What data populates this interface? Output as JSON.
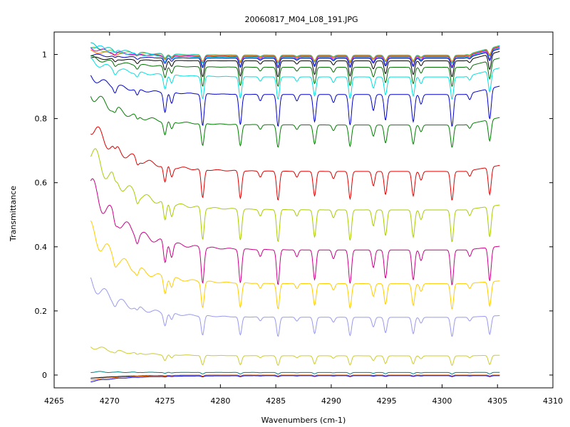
{
  "chart_data": {
    "type": "line",
    "title": "20060817_M04_L08_191.JPG",
    "xlabel": "Wavenumbers (cm-1)",
    "ylabel": "Transmittance",
    "xlim": [
      4265,
      4310
    ],
    "ylim": [
      -0.04,
      1.07
    ],
    "xticks": [
      4265,
      4270,
      4275,
      4280,
      4285,
      4290,
      4295,
      4300,
      4305,
      4310
    ],
    "xtick_labels": [
      "4265",
      "4270",
      "4275",
      "4280",
      "4285",
      "4290",
      "4295",
      "4300",
      "4305",
      "4310"
    ],
    "yticks": [
      0,
      0.2,
      0.4,
      0.6,
      0.8,
      1
    ],
    "ytick_labels": [
      "0",
      "0.2",
      "0.4",
      "0.6",
      "0.8",
      "1"
    ],
    "grid": false,
    "legend": "none",
    "x_range": [
      4268.3,
      4305.2
    ],
    "absorption_lines": [
      {
        "x": 4270.5,
        "depth": 0.18
      },
      {
        "x": 4272.5,
        "depth": 0.2
      },
      {
        "x": 4275.0,
        "depth": 0.6
      },
      {
        "x": 4275.6,
        "depth": 0.35
      },
      {
        "x": 4278.4,
        "depth": 1.0
      },
      {
        "x": 4281.8,
        "depth": 0.95
      },
      {
        "x": 4283.6,
        "depth": 0.2
      },
      {
        "x": 4285.2,
        "depth": 1.0
      },
      {
        "x": 4286.9,
        "depth": 0.2
      },
      {
        "x": 4288.5,
        "depth": 0.85
      },
      {
        "x": 4290.2,
        "depth": 0.25
      },
      {
        "x": 4291.7,
        "depth": 0.95
      },
      {
        "x": 4293.8,
        "depth": 0.5
      },
      {
        "x": 4294.9,
        "depth": 0.8
      },
      {
        "x": 4297.4,
        "depth": 0.85
      },
      {
        "x": 4298.1,
        "depth": 0.3
      },
      {
        "x": 4300.9,
        "depth": 1.0
      },
      {
        "x": 4302.5,
        "depth": 0.2
      },
      {
        "x": 4304.3,
        "depth": 0.95
      }
    ],
    "series": [
      {
        "color": "#7fbf3f",
        "baseline": 0.998,
        "start": 1.02,
        "depth": 0.02
      },
      {
        "color": "#00bfbf",
        "baseline": 0.997,
        "start": 1.03,
        "depth": 0.025
      },
      {
        "color": "#ff6f00",
        "baseline": 0.995,
        "start": 1.01,
        "depth": 0.02
      },
      {
        "color": "#bf00bf",
        "baseline": 0.993,
        "start": 1.02,
        "depth": 0.03
      },
      {
        "color": "#00cfff",
        "baseline": 0.99,
        "start": 1.03,
        "depth": 0.03
      },
      {
        "color": "#0000bf",
        "baseline": 0.988,
        "start": 1.0,
        "depth": 0.03
      },
      {
        "color": "#000000",
        "baseline": 0.98,
        "start": 0.99,
        "depth": 0.05
      },
      {
        "color": "#006f00",
        "baseline": 0.96,
        "start": 0.99,
        "depth": 0.06
      },
      {
        "color": "#00e0e0",
        "baseline": 0.93,
        "start": 0.98,
        "depth": 0.07
      },
      {
        "color": "#0000cc",
        "baseline": 0.875,
        "start": 0.93,
        "depth": 0.1
      },
      {
        "color": "#007f00",
        "baseline": 0.78,
        "start": 0.88,
        "depth": 0.07
      },
      {
        "color": "#e00000",
        "baseline": 0.635,
        "start": 0.78,
        "depth": 0.09
      },
      {
        "color": "#aacc00",
        "baseline": 0.515,
        "start": 0.7,
        "depth": 0.1
      },
      {
        "color": "#cc0088",
        "baseline": 0.39,
        "start": 0.59,
        "depth": 0.11
      },
      {
        "color": "#ffcc00",
        "baseline": 0.285,
        "start": 0.45,
        "depth": 0.08
      },
      {
        "color": "#9999ee",
        "baseline": 0.18,
        "start": 0.29,
        "depth": 0.06
      },
      {
        "color": "#cccc33",
        "baseline": 0.06,
        "start": 0.09,
        "depth": 0.03
      },
      {
        "color": "#007f7f",
        "baseline": 0.008,
        "start": 0.01,
        "depth": 0.005
      },
      {
        "color": "#000000",
        "baseline": 0.0,
        "start": -0.01,
        "depth": 0.003
      },
      {
        "color": "#ff6f00",
        "baseline": 0.0,
        "start": -0.015,
        "depth": 0.003
      },
      {
        "color": "#0000ff",
        "baseline": -0.002,
        "start": -0.02,
        "depth": 0.003
      }
    ]
  }
}
